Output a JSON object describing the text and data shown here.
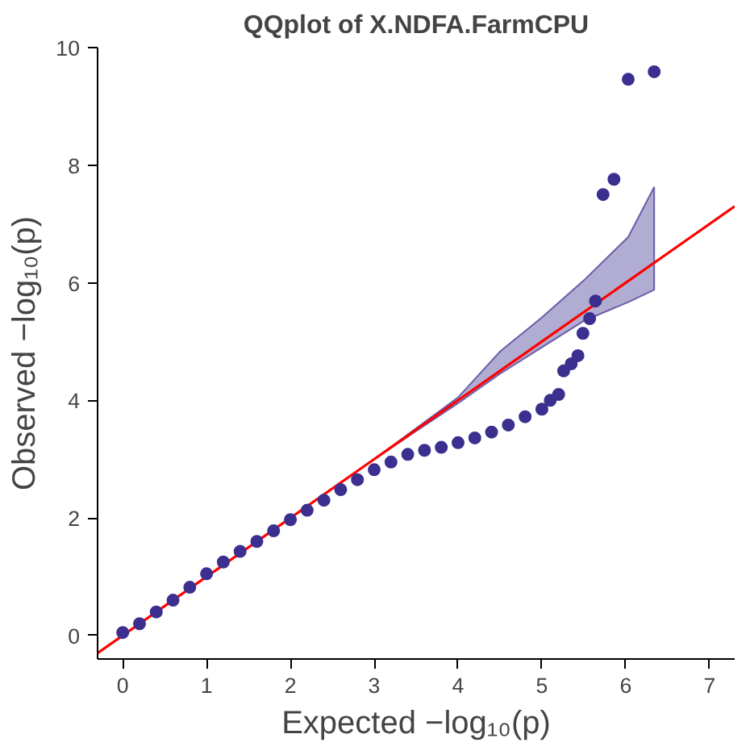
{
  "chart_data": {
    "type": "scatter",
    "title": "QQplot of X.NDFA.FarmCPU",
    "xlabel": "Expected −log₁₀(p)",
    "ylabel": "Observed −log₁₀(p)",
    "xlim": [
      -0.3,
      7.3
    ],
    "ylim": [
      -0.4,
      10.0
    ],
    "xticks": [
      0,
      1,
      2,
      3,
      4,
      5,
      6,
      7
    ],
    "yticks": [
      0,
      2,
      4,
      6,
      8,
      10
    ],
    "grid": false,
    "series": [
      {
        "type": "line",
        "color": "#ff0000",
        "x": [
          -0.3,
          3,
          4,
          4.5,
          5,
          5.5,
          6.03,
          6.34,
          7.3
        ],
        "values": [
          -0.3,
          3,
          4,
          4.5,
          5,
          5.5,
          6.03,
          6.34,
          7.3
        ],
        "lower": [
          null,
          3,
          3.95,
          4.45,
          4.9,
          5.35,
          5.67,
          5.88,
          null
        ],
        "upper": [
          null,
          3,
          4.05,
          4.83,
          5.41,
          6.04,
          6.78,
          7.63,
          null
        ]
      },
      {
        "marker": "circle",
        "color": "#3b2f8f",
        "x": [
          0.0,
          0.2,
          0.4,
          0.6,
          0.8,
          1.0,
          1.2,
          1.4,
          1.6,
          1.8,
          2.0,
          2.2,
          2.4,
          2.6,
          2.8,
          3.0,
          3.2,
          3.4,
          3.6,
          3.8,
          4.0,
          4.2,
          4.4,
          4.6,
          4.8,
          5.0,
          5.1,
          5.2,
          5.26,
          5.35,
          5.43,
          5.49,
          5.57,
          5.64,
          5.73,
          5.86,
          6.03,
          6.34
        ],
        "values": [
          0.05,
          0.2,
          0.4,
          0.6,
          0.82,
          1.05,
          1.25,
          1.43,
          1.6,
          1.78,
          1.97,
          2.13,
          2.3,
          2.48,
          2.65,
          2.82,
          2.95,
          3.08,
          3.15,
          3.2,
          3.28,
          3.36,
          3.46,
          3.58,
          3.72,
          3.85,
          4.0,
          4.1,
          4.5,
          4.62,
          4.76,
          5.14,
          5.39,
          5.69,
          7.5,
          7.76,
          9.46,
          9.59
        ]
      }
    ]
  }
}
